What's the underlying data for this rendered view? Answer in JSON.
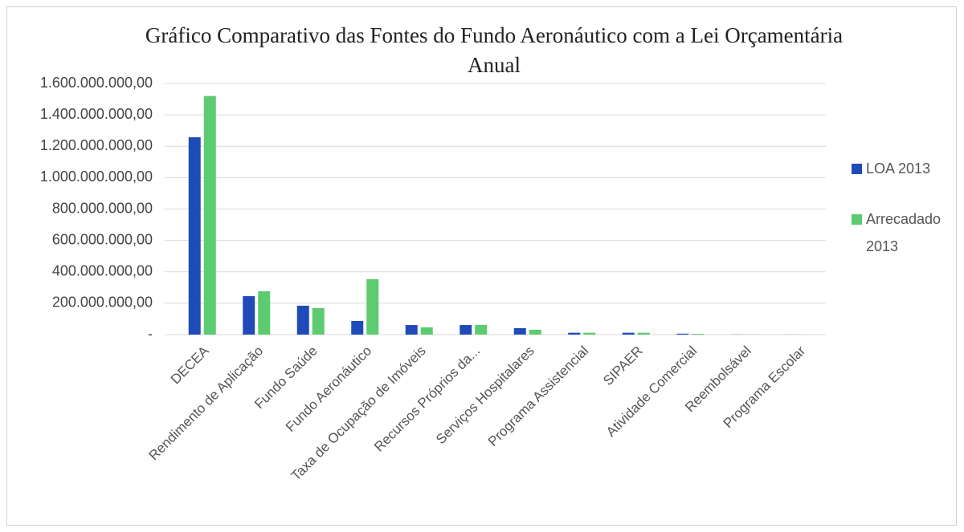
{
  "chart_data": {
    "type": "bar",
    "title": "Gráfico Comparativo das Fontes do Fundo Aeronáutico com a Lei Orçamentária Anual",
    "categories": [
      "DECEA",
      "Rendimento de Aplicação",
      "Fundo Saúde",
      "Fundo Aeronáutico",
      "Taxa de Ocupação de Imóveis",
      "Recursos Próprios da...",
      "Serviços Hospitalares",
      "Programa Assistencial",
      "SIPAER",
      "Atividade Comercial",
      "Reembolsável",
      "Programa Escolar"
    ],
    "series": [
      {
        "name": "LOA 2013",
        "color": "#1f4bb8",
        "values": [
          1257000000,
          245000000,
          184000000,
          87000000,
          61000000,
          61000000,
          41000000,
          12000000,
          12000000,
          6000000,
          1000000,
          500000
        ]
      },
      {
        "name": "Arrecadado 2013",
        "color": "#5dcb70",
        "values": [
          1520000000,
          276000000,
          169000000,
          353000000,
          46000000,
          62000000,
          31000000,
          12000000,
          12000000,
          5000000,
          1000000,
          500000
        ]
      }
    ],
    "ylim": [
      0,
      1600000000
    ],
    "yticks": [
      {
        "value": 0,
        "label": "-"
      },
      {
        "value": 200000000,
        "label": "200.000.000,00"
      },
      {
        "value": 400000000,
        "label": "400.000.000,00"
      },
      {
        "value": 600000000,
        "label": "600.000.000,00"
      },
      {
        "value": 800000000,
        "label": "800.000.000,00"
      },
      {
        "value": 1000000000,
        "label": "1.000.000.000,00"
      },
      {
        "value": 1200000000,
        "label": "1.200.000.000,00"
      },
      {
        "value": 1400000000,
        "label": "1.400.000.000,00"
      },
      {
        "value": 1600000000,
        "label": "1.600.000.000,00"
      }
    ],
    "grid": true,
    "legend": "right"
  }
}
